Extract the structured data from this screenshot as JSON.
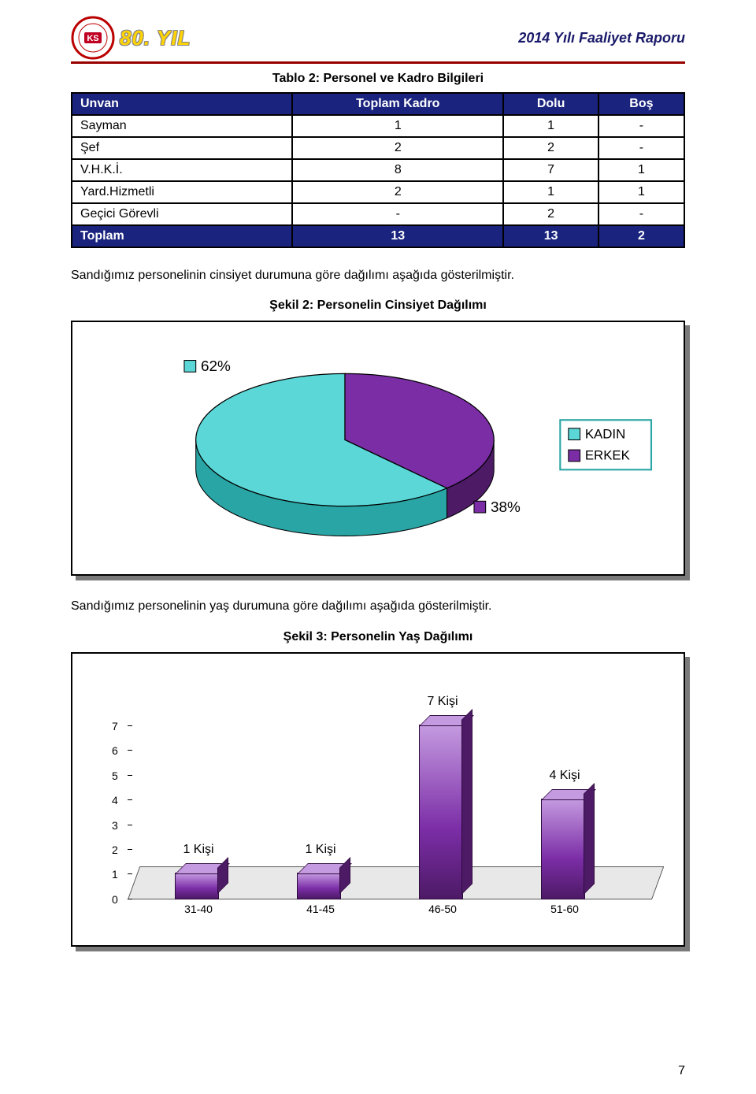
{
  "header": {
    "year_badge": "80. YIL",
    "report_title": "2014 Yılı Faaliyet Raporu"
  },
  "table2": {
    "caption": "Tablo 2: Personel ve Kadro Bilgileri",
    "headers": [
      "Unvan",
      "Toplam Kadro",
      "Dolu",
      "Boş"
    ],
    "rows": [
      [
        "Sayman",
        "1",
        "1",
        "-"
      ],
      [
        "Şef",
        "2",
        "2",
        "-"
      ],
      [
        "V.H.K.İ.",
        "8",
        "7",
        "1"
      ],
      [
        "Yard.Hizmetli",
        "2",
        "1",
        "1"
      ],
      [
        "Geçici Görevli",
        "-",
        "2",
        "-"
      ]
    ],
    "total_row": [
      "Toplam",
      "13",
      "13",
      "2"
    ],
    "header_bg": "#1a237e",
    "header_fg": "#ffffff"
  },
  "para1": "Sandığımız personelinin cinsiyet durumuna göre dağılımı aşağıda gösterilmiştir.",
  "pie_chart": {
    "title": "Şekil 2: Personelin Cinsiyet Dağılımı",
    "type": "pie",
    "slices": [
      {
        "label": "KADIN",
        "value": 62,
        "text": "62%",
        "color": "#5bd7d7",
        "side": "#2aa5a5",
        "top": "#aef0f0"
      },
      {
        "label": "ERKEK",
        "value": 38,
        "text": "38%",
        "color": "#7b2da6",
        "side": "#4d1a66",
        "top": "#b07ed0"
      }
    ],
    "legend_border": "#2aa5a5",
    "legend_items": [
      {
        "label": "KADIN",
        "swatch": "#5bd7d7"
      },
      {
        "label": "ERKEK",
        "swatch": "#7b2da6"
      }
    ],
    "background": "#ffffff"
  },
  "para2": "Sandığımız personelinin yaş durumuna göre dağılımı aşağıda gösterilmiştir.",
  "bar_chart": {
    "title": "Şekil 3: Personelin Yaş Dağılımı",
    "type": "bar",
    "categories": [
      "31-40",
      "41-45",
      "46-50",
      "51-60"
    ],
    "values": [
      1,
      1,
      7,
      4
    ],
    "value_labels": [
      "1 Kişi",
      "1 Kişi",
      "7 Kişi",
      "4 Kişi"
    ],
    "ylim": [
      0,
      7
    ],
    "ytick_step": 1,
    "bar_color": "#7b2da6",
    "bar_side": "#4d1a66",
    "bar_top": "#c49ae0",
    "floor_color": "#e8e8e8",
    "background": "#ffffff"
  },
  "page_number": "7"
}
